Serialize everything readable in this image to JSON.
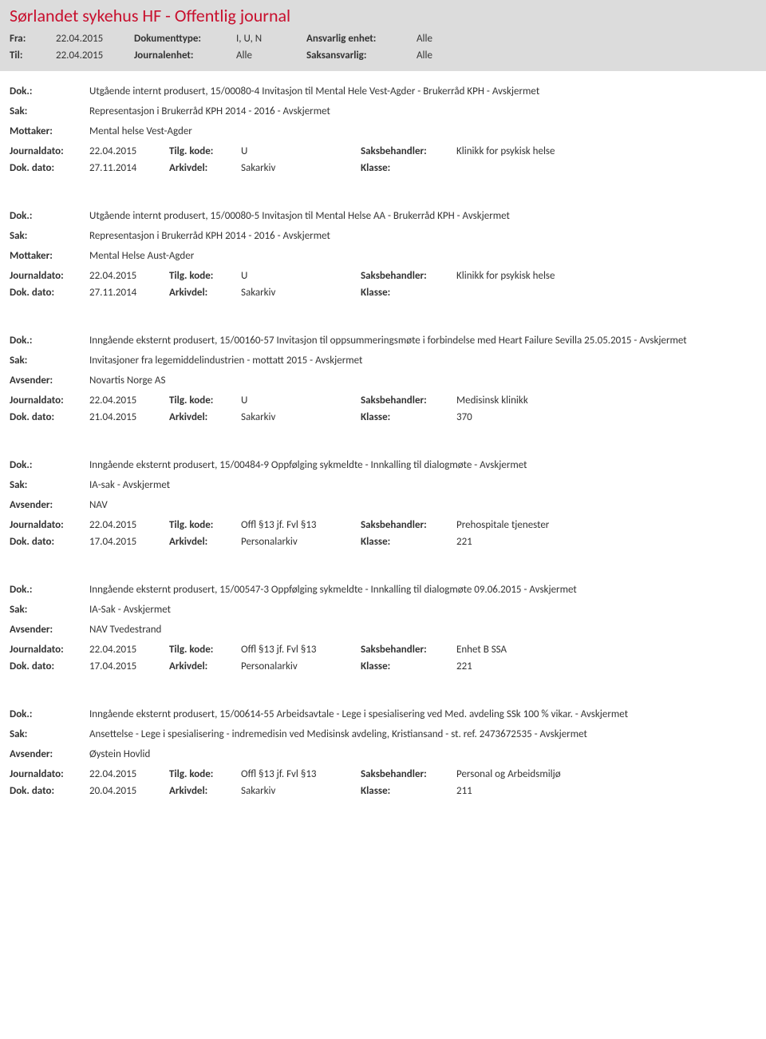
{
  "page_title": "Sørlandet sykehus HF - Offentlig journal",
  "filters": {
    "fra_label": "Fra:",
    "fra_value": "22.04.2015",
    "til_label": "Til:",
    "til_value": "22.04.2015",
    "doktype_label": "Dokumenttype:",
    "doktype_value": "I, U, N",
    "journalenhet_label": "Journalenhet:",
    "journalenhet_value": "Alle",
    "ansvarlig_label": "Ansvarlig enhet:",
    "ansvarlig_value": "Alle",
    "saksansvarlig_label": "Saksansvarlig:",
    "saksansvarlig_value": "Alle"
  },
  "labels": {
    "dok": "Dok.:",
    "sak": "Sak:",
    "mottaker": "Mottaker:",
    "avsender": "Avsender:",
    "journaldato": "Journaldato:",
    "dokdato": "Dok. dato:",
    "tilgkode": "Tilg. kode:",
    "arkivdel": "Arkivdel:",
    "saksbehandler": "Saksbehandler:",
    "klasse": "Klasse:"
  },
  "entries": [
    {
      "dok": "Utgående internt produsert, 15/00080-4 Invitasjon til Mental Hele Vest-Agder - Brukerråd KPH - Avskjermet",
      "sak": "Representasjon i Brukerråd KPH 2014 - 2016 - Avskjermet",
      "party_label": "Mottaker:",
      "party": "Mental helse Vest-Agder",
      "journaldato": "22.04.2015",
      "tilgkode": "U",
      "saksbehandler": "Klinikk for psykisk helse",
      "dokdato": "27.11.2014",
      "arkivdel": "Sakarkiv",
      "klasse": ""
    },
    {
      "dok": "Utgående internt produsert, 15/00080-5 Invitasjon til Mental Helse AA - Brukerråd KPH - Avskjermet",
      "sak": "Representasjon i Brukerråd KPH 2014 - 2016 - Avskjermet",
      "party_label": "Mottaker:",
      "party": "Mental Helse Aust-Agder",
      "journaldato": "22.04.2015",
      "tilgkode": "U",
      "saksbehandler": "Klinikk for psykisk helse",
      "dokdato": "27.11.2014",
      "arkivdel": "Sakarkiv",
      "klasse": ""
    },
    {
      "dok": "Inngående eksternt produsert, 15/00160-57 Invitasjon til oppsummeringsmøte i forbindelse med Heart Failure Sevilla 25.05.2015 - Avskjermet",
      "sak": "Invitasjoner fra legemiddelindustrien - mottatt 2015 - Avskjermet",
      "party_label": "Avsender:",
      "party": "Novartis Norge AS",
      "journaldato": "22.04.2015",
      "tilgkode": "U",
      "saksbehandler": "Medisinsk klinikk",
      "dokdato": "21.04.2015",
      "arkivdel": "Sakarkiv",
      "klasse": "370"
    },
    {
      "dok": "Inngående eksternt produsert, 15/00484-9 Oppfølging sykmeldte - Innkalling til dialogmøte - Avskjermet",
      "sak": "IA-sak - Avskjermet",
      "party_label": "Avsender:",
      "party": "NAV",
      "journaldato": "22.04.2015",
      "tilgkode": "Offl §13 jf. Fvl §13",
      "saksbehandler": "Prehospitale tjenester",
      "dokdato": "17.04.2015",
      "arkivdel": "Personalarkiv",
      "klasse": "221"
    },
    {
      "dok": "Inngående eksternt produsert, 15/00547-3 Oppfølging sykmeldte - Innkalling til dialogmøte 09.06.2015 - Avskjermet",
      "sak": "IA-Sak - Avskjermet",
      "party_label": "Avsender:",
      "party": "NAV Tvedestrand",
      "journaldato": "22.04.2015",
      "tilgkode": "Offl §13 jf. Fvl §13",
      "saksbehandler": "Enhet B SSA",
      "dokdato": "17.04.2015",
      "arkivdel": "Personalarkiv",
      "klasse": "221"
    },
    {
      "dok": "Inngående eksternt produsert, 15/00614-55 Arbeidsavtale - Lege i spesialisering ved Med. avdeling SSk 100 % vikar. - Avskjermet",
      "sak": "Ansettelse - Lege i spesialisering - indremedisin ved Medisinsk avdeling, Kristiansand - st. ref. 2473672535 - Avskjermet",
      "party_label": "Avsender:",
      "party": "Øystein Hovlid",
      "journaldato": "22.04.2015",
      "tilgkode": "Offl §13 jf. Fvl §13",
      "saksbehandler": "Personal og Arbeidsmiljø",
      "dokdato": "20.04.2015",
      "arkivdel": "Sakarkiv",
      "klasse": "211"
    }
  ]
}
